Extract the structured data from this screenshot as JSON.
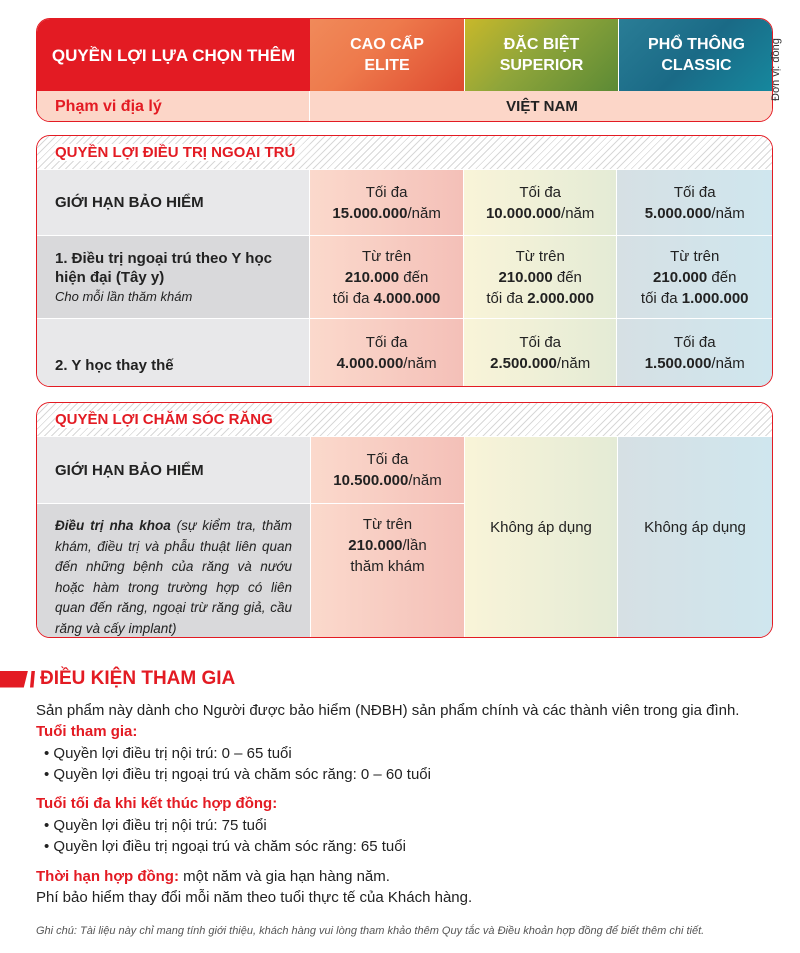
{
  "header": {
    "title": "QUYỀN LỢI LỰA CHỌN THÊM",
    "plans": [
      {
        "l1": "CAO CẤP",
        "l2": "ELITE"
      },
      {
        "l1": "ĐẶC BIỆT",
        "l2": "SUPERIOR"
      },
      {
        "l1": "PHỔ THÔNG",
        "l2": "CLASSIC"
      }
    ],
    "geo_label": "Phạm vi địa lý",
    "geo_value": "VIỆT NAM",
    "unit": "Đơn vị: đồng"
  },
  "colors": {
    "accent": "#e31b23",
    "elite": "#ee7a4c",
    "superior": "#8fa53a",
    "classic": "#1a6a86"
  },
  "outpatient": {
    "title": "QUYỀN LỢI ĐIỀU TRỊ NGOẠI TRÚ",
    "rows": [
      {
        "label": "GIỚI HẠN BẢO HIỂM",
        "cells": [
          [
            [
              {
                "t": "Tối đa"
              }
            ],
            [
              {
                "t": "15.000.000",
                "b": true
              },
              {
                "t": "/năm"
              }
            ]
          ],
          [
            [
              {
                "t": "Tối đa"
              }
            ],
            [
              {
                "t": "10.000.000",
                "b": true
              },
              {
                "t": "/năm"
              }
            ]
          ],
          [
            [
              {
                "t": "Tối đa"
              }
            ],
            [
              {
                "t": "5.000.000",
                "b": true
              },
              {
                "t": "/năm"
              }
            ]
          ]
        ]
      },
      {
        "label": "1. Điều trị ngoại trú theo Y học hiện đại (Tây y)",
        "sub": "Cho mỗi lần thăm khám",
        "cells": [
          [
            [
              {
                "t": "Từ trên"
              }
            ],
            [
              {
                "t": "210.000",
                "b": true
              },
              {
                "t": " đến"
              }
            ],
            [
              {
                "t": "tối đa "
              },
              {
                "t": "4.000.000",
                "b": true
              }
            ]
          ],
          [
            [
              {
                "t": "Từ trên"
              }
            ],
            [
              {
                "t": "210.000",
                "b": true
              },
              {
                "t": " đến"
              }
            ],
            [
              {
                "t": "tối đa "
              },
              {
                "t": "2.000.000",
                "b": true
              }
            ]
          ],
          [
            [
              {
                "t": "Từ trên"
              }
            ],
            [
              {
                "t": "210.000",
                "b": true
              },
              {
                "t": " đến"
              }
            ],
            [
              {
                "t": "tối đa "
              },
              {
                "t": "1.000.000",
                "b": true
              }
            ]
          ]
        ]
      },
      {
        "label": "2. Y học thay thế",
        "cells": [
          [
            [
              {
                "t": "Tối đa"
              }
            ],
            [
              {
                "t": "4.000.000",
                "b": true
              },
              {
                "t": "/năm"
              }
            ]
          ],
          [
            [
              {
                "t": "Tối đa"
              }
            ],
            [
              {
                "t": "2.500.000",
                "b": true
              },
              {
                "t": "/năm"
              }
            ]
          ],
          [
            [
              {
                "t": "Tối đa"
              }
            ],
            [
              {
                "t": "1.500.000",
                "b": true
              },
              {
                "t": "/năm"
              }
            ]
          ]
        ]
      }
    ]
  },
  "dental": {
    "title": "QUYỀN LỢI CHĂM SÓC RĂNG",
    "rows": [
      {
        "label": "GIỚI HẠN BẢO HIỂM",
        "cells": [
          [
            [
              {
                "t": "Tối đa"
              }
            ],
            [
              {
                "t": "10.500.000",
                "b": true
              },
              {
                "t": "/năm"
              }
            ]
          ]
        ]
      },
      {
        "label": "Điều trị nha khoa",
        "desc": " (sự kiểm tra, thăm khám, điều trị và phẫu thuật liên quan đến những bệnh của răng và nướu hoặc hàm trong trường hợp có liên quan đến răng, ngoại trừ răng giả, cầu răng và cấy implant)",
        "cells": [
          [
            [
              {
                "t": "Từ trên"
              }
            ],
            [
              {
                "t": "210.000",
                "b": true
              },
              {
                "t": "/lần"
              }
            ],
            [
              {
                "t": "thăm khám"
              }
            ]
          ]
        ]
      }
    ],
    "na_superior": "Không áp dụng",
    "na_classic": "Không áp dụng"
  },
  "conditions": {
    "title": "ĐIỀU KIỆN THAM GIA",
    "intro": "Sản phẩm này dành cho Người được bảo hiểm (NĐBH) sản phẩm chính và các thành viên trong gia đình.",
    "age_title": "Tuổi tham gia:",
    "age_items": [
      "• Quyền lợi điều trị nội trú: 0 – 65 tuổi",
      "• Quyền lợi điều trị ngoại trú và chăm sóc răng: 0 – 60 tuổi"
    ],
    "max_title": "Tuổi tối đa khi kết thúc hợp đồng:",
    "max_items": [
      "• Quyền lợi điều trị nội trú: 75 tuổi",
      "• Quyền lợi điều trị ngoại trú và chăm sóc răng: 65 tuổi"
    ],
    "term_label": "Thời hạn hợp đồng:",
    "term_value": " một năm và gia hạn hàng năm.",
    "premium": "Phí bảo hiểm thay đổi mỗi năm theo tuổi thực tế của Khách hàng.",
    "note": "Ghi chú: Tài liệu này chỉ mang tính giới thiệu, khách hàng vui lòng tham khảo thêm Quy tắc và Điều khoản hợp đồng để biết thêm chi tiết."
  }
}
